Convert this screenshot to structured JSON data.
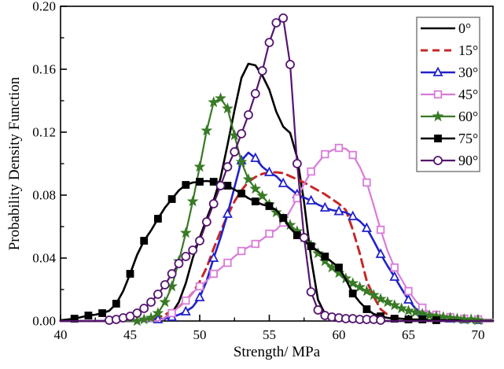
{
  "chart_data": {
    "type": "line",
    "title": "",
    "xlabel": "Strength/ MPa",
    "ylabel": "Probability Density Function",
    "xlim": [
      40,
      70
    ],
    "ylim": [
      0,
      0.2
    ],
    "grid": false,
    "legend_position": "top-right",
    "x_major_ticks": [
      40,
      45,
      50,
      55,
      60,
      65,
      70
    ],
    "x_minor_ticks": [
      42.5,
      47.5,
      52.5,
      57.5,
      62.5,
      67.5
    ],
    "y_major_ticks": [
      0.0,
      0.04,
      0.08,
      0.12,
      0.16,
      0.2
    ],
    "y_minor_ticks": [
      0.02,
      0.06,
      0.1,
      0.14,
      0.18
    ],
    "y_tick_labels": [
      "0.00",
      "0.04",
      "0.08",
      "0.12",
      "0.16",
      "0.20"
    ],
    "x_tick_labels": [
      "40",
      "45",
      "50",
      "55",
      "60",
      "65",
      "70"
    ],
    "x_start": 40,
    "x_step": 0.5,
    "frame_color": "#000000",
    "legend_border_color": "#7d7d7d",
    "series": [
      {
        "name": "0°",
        "angle_deg": 0,
        "color": "#000000",
        "line_style": "solid",
        "line_width": 2.6,
        "marker": "none",
        "marker_every": 0,
        "marker_range": [
          0,
          0
        ],
        "values": [
          0,
          0,
          0,
          0,
          0,
          0,
          0,
          0,
          0,
          0,
          0,
          0,
          0,
          0,
          0,
          0.002,
          0.005,
          0.012,
          0.024,
          0.04,
          0.053,
          0.065,
          0.0765,
          0.091,
          0.112,
          0.134,
          0.1545,
          0.1635,
          0.1625,
          0.156,
          0.147,
          0.133,
          0.1235,
          0.1195,
          0.104,
          0.0755,
          0.04,
          0.0135,
          0.0045,
          0.0015,
          0.0005,
          0,
          0,
          0,
          0,
          0,
          0,
          0,
          0,
          0,
          0,
          0,
          0,
          0,
          0,
          0,
          0,
          0,
          0,
          0,
          0
        ]
      },
      {
        "name": "15°",
        "angle_deg": 15,
        "color": "#c62828",
        "line_style": "dashed",
        "line_width": 3,
        "marker": "none",
        "marker_every": 0,
        "marker_range": [
          0,
          0
        ],
        "values": [
          0,
          0,
          0,
          0,
          0,
          0,
          0,
          0,
          0,
          0,
          0,
          0,
          0,
          0.001,
          0.002,
          0.004,
          0.0065,
          0.009,
          0.013,
          0.018,
          0.025,
          0.034,
          0.046,
          0.057,
          0.067,
          0.076,
          0.083,
          0.0885,
          0.0915,
          0.0935,
          0.0945,
          0.0945,
          0.094,
          0.092,
          0.09,
          0.088,
          0.0855,
          0.083,
          0.0805,
          0.0775,
          0.0745,
          0.0705,
          0.058,
          0.043,
          0.0255,
          0.0155,
          0.0075,
          0.004,
          0.002,
          0.0015,
          0.001,
          0.001,
          0.0005,
          0,
          0,
          0,
          0,
          0,
          0,
          0,
          0
        ]
      },
      {
        "name": "30°",
        "angle_deg": 30,
        "color": "#2222c8",
        "line_style": "solid",
        "line_width": 2.6,
        "marker": "triangle-open",
        "marker_every": 2,
        "marker_range": [
          46.5,
          70
        ],
        "values": [
          0,
          0,
          0,
          0,
          0,
          0,
          0,
          0,
          0,
          0,
          0,
          0,
          0,
          0,
          0.001,
          0.0015,
          0.0025,
          0.004,
          0.006,
          0.009,
          0.015,
          0.0255,
          0.04,
          0.053,
          0.068,
          0.085,
          0.102,
          0.107,
          0.1035,
          0.098,
          0.0945,
          0.092,
          0.0875,
          0.084,
          0.0805,
          0.0785,
          0.0765,
          0.074,
          0.072,
          0.0705,
          0.0697,
          0.069,
          0.0665,
          0.0635,
          0.059,
          0.051,
          0.0425,
          0.035,
          0.028,
          0.0205,
          0.0135,
          0.008,
          0.005,
          0.0035,
          0.0025,
          0.002,
          0.0015,
          0.001,
          0.001,
          0.0005,
          0.0005
        ]
      },
      {
        "name": "45°",
        "angle_deg": 45,
        "color": "#d97bd9",
        "line_style": "solid",
        "line_width": 2.2,
        "marker": "square-open",
        "marker_every": 2,
        "marker_range": [
          47.5,
          70
        ],
        "values": [
          0,
          0,
          0,
          0,
          0,
          0,
          0,
          0,
          0,
          0,
          0,
          0,
          0,
          0,
          0,
          0.002,
          0.005,
          0.009,
          0.013,
          0.018,
          0.022,
          0.0255,
          0.03,
          0.0335,
          0.037,
          0.041,
          0.0445,
          0.047,
          0.049,
          0.052,
          0.0555,
          0.058,
          0.0625,
          0.07,
          0.078,
          0.087,
          0.095,
          0.1005,
          0.106,
          0.1085,
          0.11,
          0.1095,
          0.1055,
          0.098,
          0.088,
          0.0735,
          0.058,
          0.0445,
          0.034,
          0.0265,
          0.019,
          0.013,
          0.0085,
          0.0055,
          0.004,
          0.003,
          0.0025,
          0.002,
          0.0015,
          0.001,
          0.001
        ]
      },
      {
        "name": "60°",
        "angle_deg": 60,
        "color": "#397a26",
        "line_style": "solid",
        "line_width": 2.2,
        "marker": "star-filled",
        "marker_every": 1,
        "marker_range": [
          45.5,
          70
        ],
        "values": [
          0,
          0,
          0,
          0,
          0,
          0,
          0,
          0,
          0,
          0,
          0,
          0,
          0.001,
          0.002,
          0.005,
          0.012,
          0.022,
          0.038,
          0.056,
          0.076,
          0.098,
          0.121,
          0.139,
          0.1415,
          0.135,
          0.118,
          0.101,
          0.09,
          0.084,
          0.0795,
          0.074,
          0.069,
          0.065,
          0.061,
          0.057,
          0.053,
          0.048,
          0.043,
          0.038,
          0.034,
          0.0305,
          0.027,
          0.024,
          0.0215,
          0.019,
          0.0165,
          0.014,
          0.012,
          0.01,
          0.008,
          0.0065,
          0.0055,
          0.0045,
          0.0035,
          0.003,
          0.0025,
          0.002,
          0.0015,
          0.001,
          0.001,
          0.0005
        ]
      },
      {
        "name": "75°",
        "angle_deg": 75,
        "color": "#000000",
        "line_style": "solid",
        "line_width": 2.6,
        "marker": "square-filled",
        "marker_every": 2,
        "marker_range": [
          40.5,
          67.5
        ],
        "values": [
          0.0005,
          0.001,
          0.0015,
          0.0025,
          0.0035,
          0.004,
          0.005,
          0.0065,
          0.011,
          0.019,
          0.03,
          0.042,
          0.051,
          0.0575,
          0.065,
          0.072,
          0.0775,
          0.083,
          0.0865,
          0.088,
          0.0885,
          0.089,
          0.0885,
          0.088,
          0.086,
          0.0835,
          0.081,
          0.078,
          0.076,
          0.074,
          0.073,
          0.0705,
          0.0655,
          0.059,
          0.0545,
          0.051,
          0.0475,
          0.0445,
          0.041,
          0.0375,
          0.034,
          0.0265,
          0.0175,
          0.012,
          0.0075,
          0.0045,
          0.003,
          0.002,
          0.0015,
          0.0015,
          0.001,
          0.001,
          0.001,
          0.0005,
          0.0005,
          0.0005,
          0.0005,
          0.0005,
          0,
          0,
          0
        ]
      },
      {
        "name": "90°",
        "angle_deg": 90,
        "color": "#55156e",
        "line_style": "solid",
        "line_width": 2.2,
        "marker": "circle-open",
        "marker_every": 1,
        "marker_range": [
          43.5,
          63
        ],
        "values": [
          0,
          0,
          0,
          0,
          0,
          0,
          0,
          0.0005,
          0.001,
          0.002,
          0.003,
          0.005,
          0.008,
          0.012,
          0.017,
          0.023,
          0.03,
          0.0365,
          0.041,
          0.045,
          0.051,
          0.063,
          0.0745,
          0.086,
          0.098,
          0.1075,
          0.119,
          0.131,
          0.1445,
          0.159,
          0.177,
          0.1895,
          0.1925,
          0.163,
          0.1,
          0.053,
          0.0185,
          0.007,
          0.0035,
          0.0025,
          0.002,
          0.0015,
          0.0015,
          0.001,
          0.001,
          0.001,
          0.0005,
          0,
          0,
          0,
          0,
          0,
          0,
          0,
          0,
          0,
          0,
          0,
          0,
          0,
          0
        ]
      }
    ],
    "legend": {
      "entries": [
        "0°",
        "15°",
        "30°",
        "45°",
        "60°",
        "75°",
        "90°"
      ]
    }
  }
}
